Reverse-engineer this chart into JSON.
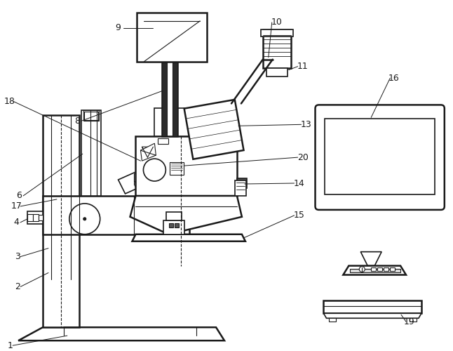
{
  "background_color": "#ffffff",
  "line_color": "#1a1a1a",
  "lw_thin": 0.8,
  "lw_med": 1.2,
  "lw_thick": 1.8
}
